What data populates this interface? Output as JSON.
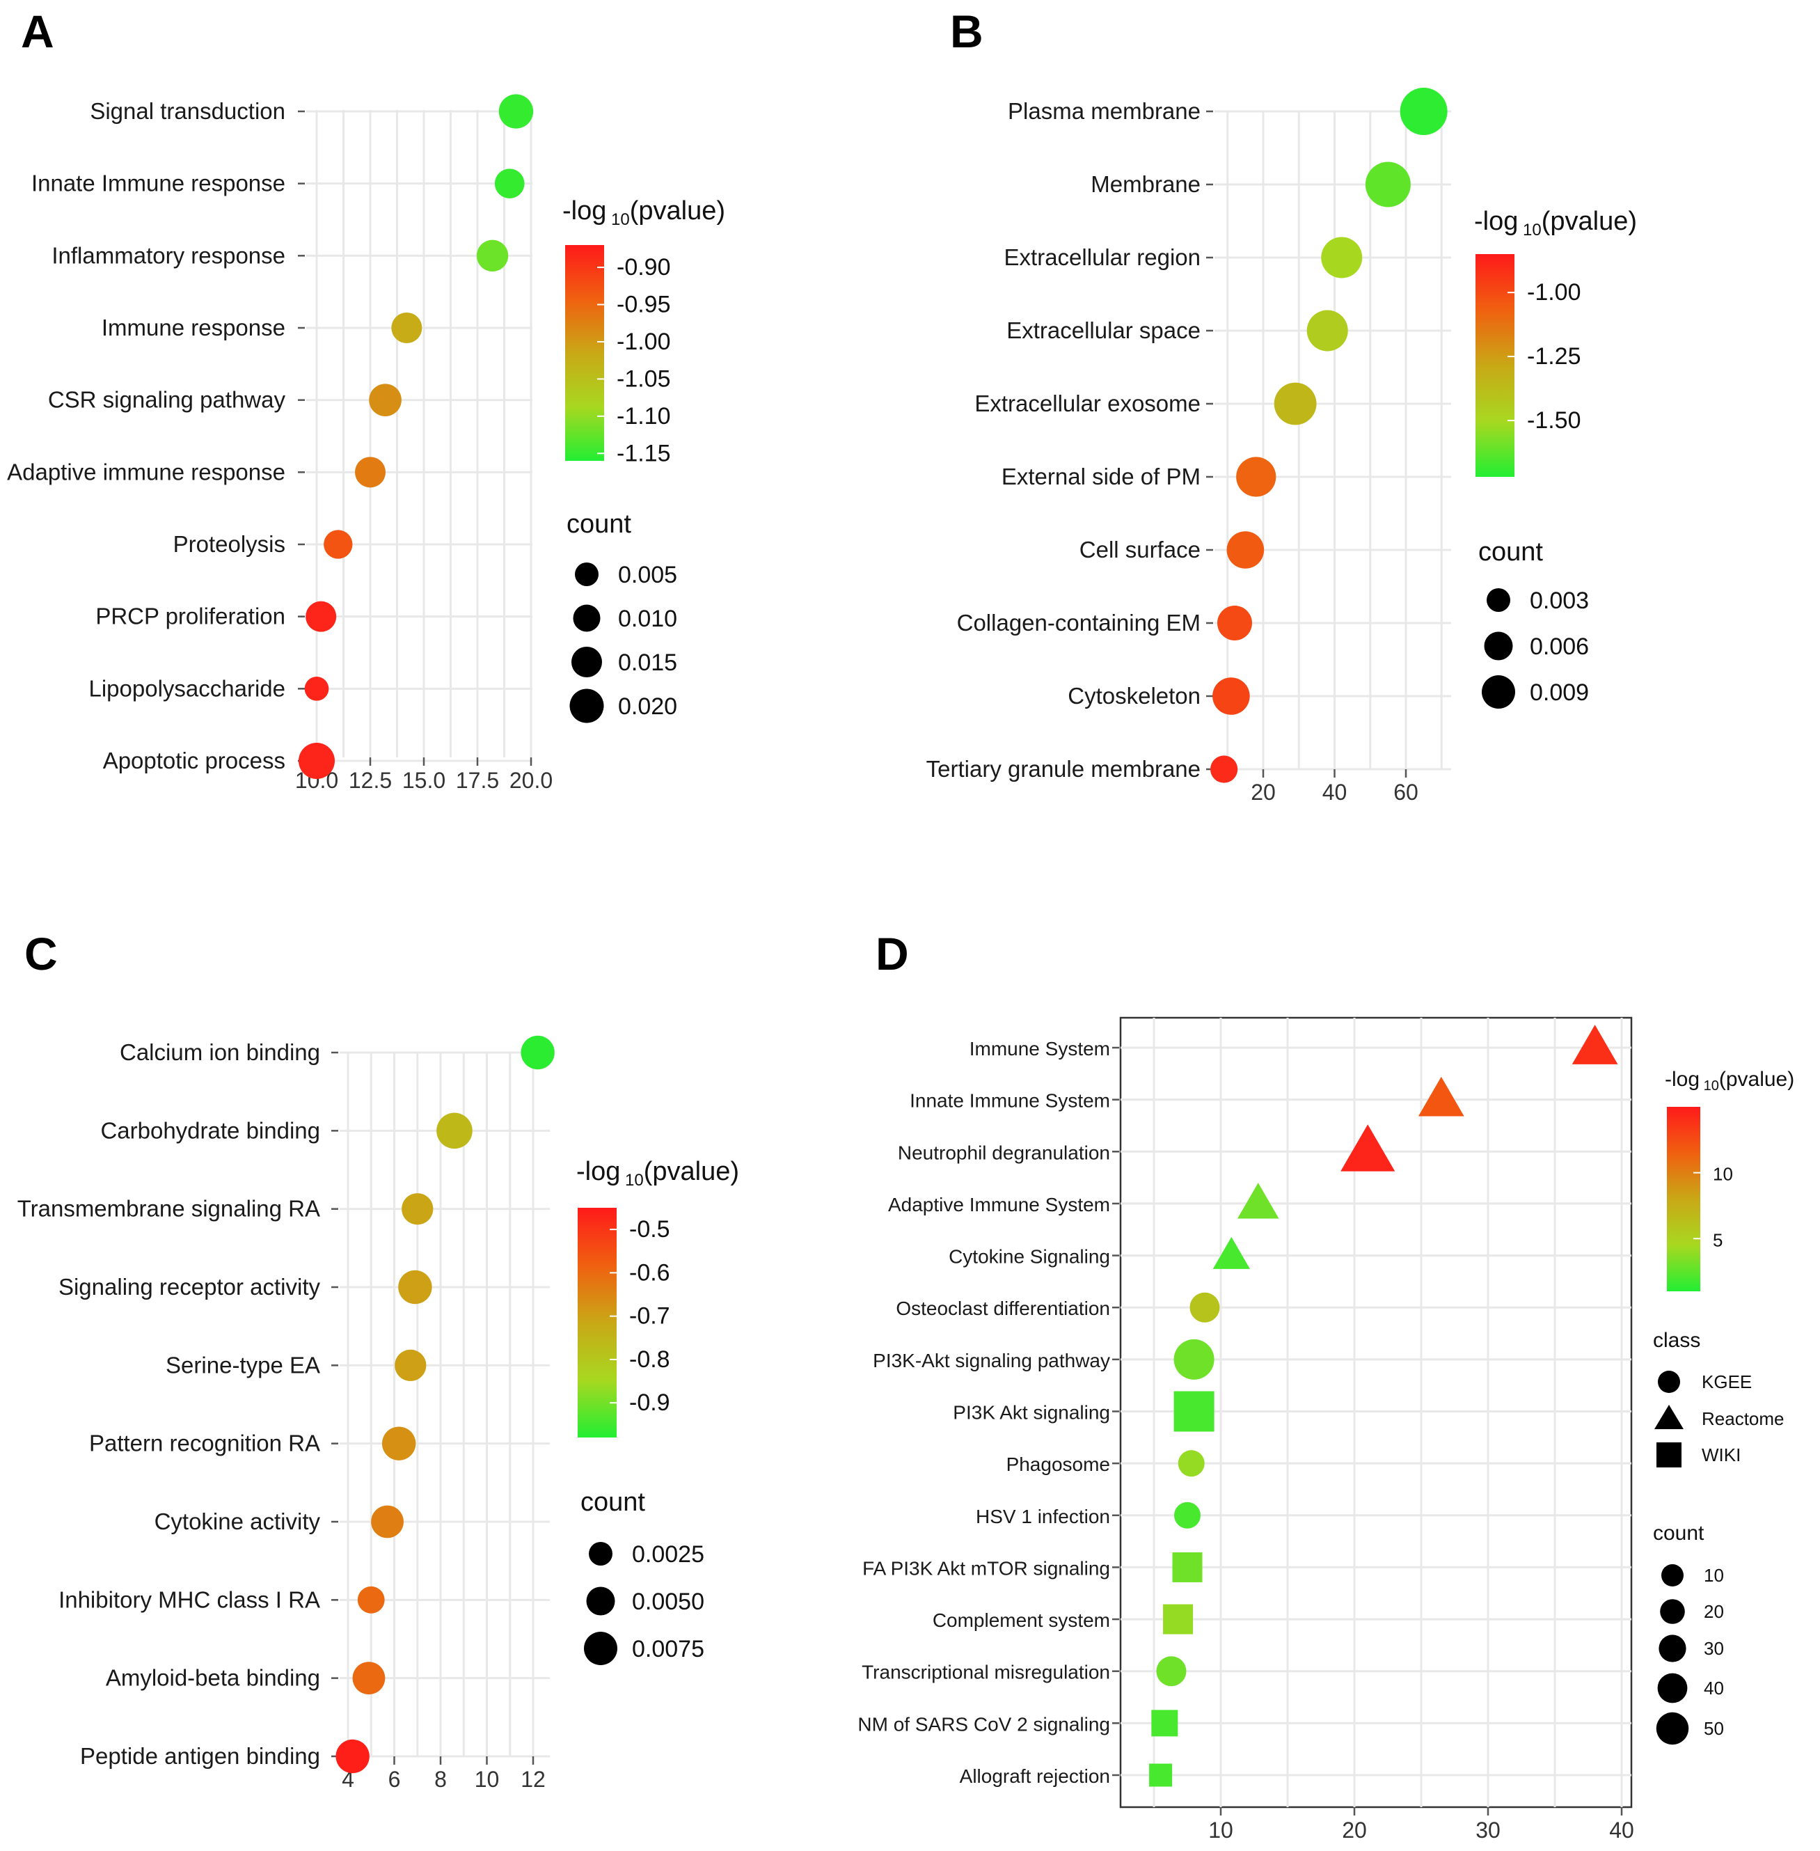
{
  "colors": {
    "low": "#22ee33",
    "mid": "#c9a816",
    "high": "#ff2a1a",
    "grid": "#e8e8e8",
    "tick": "#555555"
  },
  "legend_title_main": "-log",
  "legend_title_sub": "10",
  "legend_title_tail": "(pvalue)",
  "chart_data": [
    {
      "panel": "A",
      "type": "scatter",
      "categories": [
        "Signal transduction",
        "Innate Immune response",
        "Inflammatory response",
        "Immune response",
        "CSR signaling pathway",
        "Adaptive immune response",
        "Proteolysis",
        "PRCP proliferation",
        "Lipopolysaccharide",
        "Apoptotic process"
      ],
      "x": [
        19.3,
        19.0,
        18.2,
        14.2,
        13.2,
        12.5,
        11.0,
        10.2,
        10.0,
        10.0
      ],
      "pvalue_log": [
        -1.15,
        -1.15,
        -1.12,
        -1.02,
        -0.99,
        -0.97,
        -0.93,
        -0.88,
        -0.88,
        -0.88
      ],
      "count": [
        0.018,
        0.013,
        0.015,
        0.014,
        0.016,
        0.014,
        0.012,
        0.014,
        0.007,
        0.02
      ],
      "xticks": [
        "10.0",
        "12.5",
        "15.0",
        "17.5",
        "20.0"
      ],
      "xlim": [
        9.5,
        20.5
      ],
      "color_range": [
        -1.16,
        -0.87
      ],
      "color_ticks": [
        "-0.90",
        "-0.95",
        "-1.00",
        "-1.05",
        "-1.10",
        "-1.15"
      ],
      "size_title": "count",
      "size_ticks": [
        "0.005",
        "0.010",
        "0.015",
        "0.020"
      ]
    },
    {
      "panel": "B",
      "type": "scatter",
      "categories": [
        "Plasma membrane",
        "Membrane",
        "Extracellular region",
        "Extracellular space",
        "Extracellular exosome",
        "External side of PM",
        "Cell surface",
        "Collagen-containing EM",
        "Cytoskeleton",
        "Tertiary granule membrane"
      ],
      "x": [
        65,
        55,
        42,
        38,
        29,
        18,
        15,
        12,
        11,
        9
      ],
      "pvalue_log": [
        -1.7,
        -1.62,
        -1.5,
        -1.45,
        -1.35,
        -1.08,
        -1.05,
        -1.0,
        -0.98,
        -0.9
      ],
      "count": [
        0.012,
        0.0085,
        0.0075,
        0.0075,
        0.0078,
        0.0072,
        0.0066,
        0.006,
        0.0066,
        0.0042
      ],
      "xticks": [
        "20",
        "40",
        "60"
      ],
      "xlim": [
        5,
        72
      ],
      "color_range": [
        -1.72,
        -0.85
      ],
      "color_ticks": [
        "-1.00",
        "-1.25",
        "-1.50"
      ],
      "size_title": "count",
      "size_ticks": [
        "0.003",
        "0.006",
        "0.009"
      ]
    },
    {
      "panel": "C",
      "type": "scatter",
      "categories": [
        "Calcium ion binding",
        "Carbohydrate binding",
        "Transmembrane signaling RA",
        "Signaling receptor activity",
        "Serine-type EA",
        "Pattern recognition RA",
        "Cytokine activity",
        "Inhibitory MHC class I RA",
        "Amyloid-beta binding",
        "Peptide antigen binding"
      ],
      "x": [
        12.2,
        8.6,
        7.0,
        6.9,
        6.7,
        6.2,
        5.7,
        5.0,
        4.9,
        4.2
      ],
      "pvalue_log": [
        -0.97,
        -0.76,
        -0.71,
        -0.7,
        -0.7,
        -0.67,
        -0.64,
        -0.6,
        -0.6,
        -0.46
      ],
      "count": [
        0.0066,
        0.0074,
        0.0058,
        0.0066,
        0.0058,
        0.0066,
        0.0062,
        0.0042,
        0.0062,
        0.0066
      ],
      "xticks": [
        "4",
        "6",
        "8",
        "10",
        "12"
      ],
      "xlim": [
        3.3,
        13.0
      ],
      "color_range": [
        -0.98,
        -0.45
      ],
      "color_ticks": [
        "-0.5",
        "-0.6",
        "-0.7",
        "-0.8",
        "-0.9"
      ],
      "size_title": "count",
      "size_ticks": [
        "0.0025",
        "0.0050",
        "0.0075"
      ]
    },
    {
      "panel": "D",
      "type": "scatter",
      "categories": [
        "Immune System",
        "Innate Immune System",
        "Neutrophil degranulation",
        "Adaptive Immune System",
        "Cytokine Signaling",
        "Osteoclast differentiation",
        "PI3K-Akt signaling pathway",
        "PI3K Akt signaling",
        "Phagosome",
        "HSV 1 infection",
        "FA PI3K Akt mTOR signaling",
        "Complement system",
        "Transcriptional misregulation",
        "NM of SARS CoV 2 signaling",
        "Allograft rejection"
      ],
      "x": [
        38,
        26.5,
        21,
        12.8,
        10.8,
        8.8,
        8.0,
        8.0,
        7.8,
        7.5,
        7.5,
        6.8,
        6.3,
        5.8,
        5.5
      ],
      "pvalue_log": [
        14,
        12,
        14.5,
        3,
        2,
        6,
        3,
        2,
        4,
        2,
        3,
        4,
        3,
        2,
        2
      ],
      "class": [
        "Reactome",
        "Reactome",
        "Reactome",
        "Reactome",
        "Reactome",
        "KGEE",
        "KGEE",
        "WIKI",
        "KGEE",
        "KGEE",
        "WIKI",
        "WIKI",
        "KGEE",
        "WIKI",
        "WIKI"
      ],
      "count": [
        35,
        35,
        45,
        30,
        25,
        25,
        40,
        40,
        20,
        20,
        25,
        25,
        25,
        20,
        15
      ],
      "xticks": [
        "10",
        "20",
        "30",
        "40"
      ],
      "xlim": [
        2.5,
        41
      ],
      "color_range": [
        1,
        15
      ],
      "color_ticks": [
        "10",
        "5"
      ],
      "color_tick_values": [
        10,
        5
      ],
      "class_title": "class",
      "class_labels": [
        "KGEE",
        "Reactome",
        "WIKI"
      ],
      "size_title": "count",
      "size_ticks": [
        "10",
        "20",
        "30",
        "40",
        "50"
      ]
    }
  ]
}
